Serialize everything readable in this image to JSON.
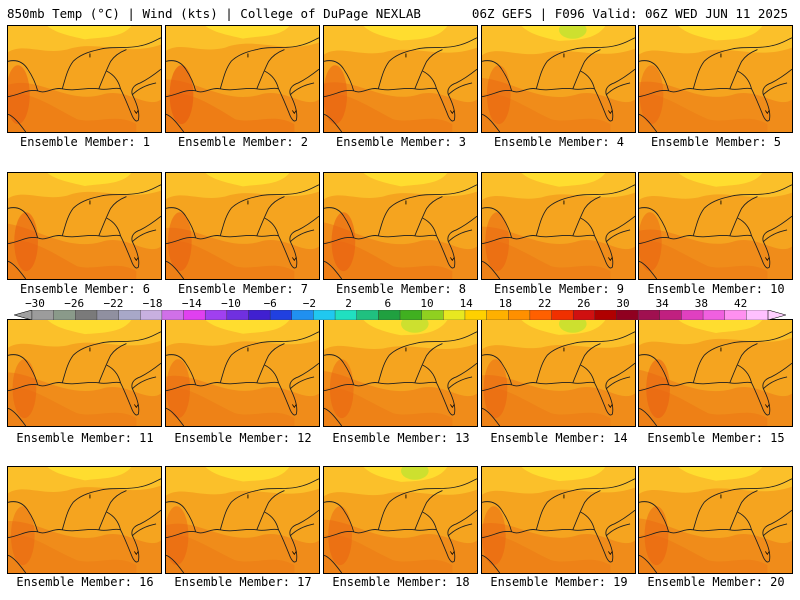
{
  "header": {
    "left": "850mb Temp (°C) | Wind (kts) | College of DuPage NEXLAB",
    "right": "06Z GEFS | F096 Valid: 06Z WED JUN 11 2025"
  },
  "members": [
    {
      "label": "Ensemble Member: 1",
      "warmth": 0.55,
      "yellow_top": 0.45
    },
    {
      "label": "Ensemble Member: 2",
      "warmth": 0.7,
      "yellow_top": 0.35
    },
    {
      "label": "Ensemble Member: 3",
      "warmth": 0.55,
      "yellow_top": 0.6
    },
    {
      "label": "Ensemble Member: 4",
      "warmth": 0.45,
      "yellow_top": 0.65
    },
    {
      "label": "Ensemble Member: 5",
      "warmth": 0.4,
      "yellow_top": 0.6
    },
    {
      "label": "Ensemble Member: 6",
      "warmth": 0.6,
      "yellow_top": 0.4
    },
    {
      "label": "Ensemble Member: 7",
      "warmth": 0.55,
      "yellow_top": 0.45
    },
    {
      "label": "Ensemble Member: 8",
      "warmth": 0.6,
      "yellow_top": 0.45
    },
    {
      "label": "Ensemble Member: 9",
      "warmth": 0.5,
      "yellow_top": 0.5
    },
    {
      "label": "Ensemble Member: 10",
      "warmth": 0.45,
      "yellow_top": 0.5
    },
    {
      "label": "Ensemble Member: 11",
      "warmth": 0.45,
      "yellow_top": 0.55
    },
    {
      "label": "Ensemble Member: 12",
      "warmth": 0.45,
      "yellow_top": 0.5
    },
    {
      "label": "Ensemble Member: 13",
      "warmth": 0.45,
      "yellow_top": 0.7
    },
    {
      "label": "Ensemble Member: 14",
      "warmth": 0.45,
      "yellow_top": 0.65
    },
    {
      "label": "Ensemble Member: 15",
      "warmth": 0.55,
      "yellow_top": 0.4
    },
    {
      "label": "Ensemble Member: 16",
      "warmth": 0.4,
      "yellow_top": 0.45
    },
    {
      "label": "Ensemble Member: 17",
      "warmth": 0.45,
      "yellow_top": 0.6
    },
    {
      "label": "Ensemble Member: 18",
      "warmth": 0.45,
      "yellow_top": 0.65
    },
    {
      "label": "Ensemble Member: 19",
      "warmth": 0.45,
      "yellow_top": 0.55
    },
    {
      "label": "Ensemble Member: 20",
      "warmth": 0.5,
      "yellow_top": 0.5
    }
  ],
  "colorbar": {
    "tick_labels": [
      "−30",
      "−26",
      "−22",
      "−18",
      "−14",
      "−10",
      "−6",
      "−2",
      "2",
      "6",
      "10",
      "14",
      "18",
      "22",
      "26",
      "30",
      "34",
      "38",
      "42"
    ],
    "colors": [
      "#9c9c9c",
      "#8a9a8a",
      "#7a7a7a",
      "#9090a0",
      "#a8a8c8",
      "#c8b0e0",
      "#d070e8",
      "#e040f0",
      "#a040f0",
      "#7030e0",
      "#4020d0",
      "#2040e0",
      "#2090f0",
      "#20c8f0",
      "#20e0c0",
      "#20c080",
      "#20a040",
      "#40b020",
      "#90d020",
      "#e8e820",
      "#ffd000",
      "#ffb000",
      "#ff9000",
      "#ff6000",
      "#f03000",
      "#d01010",
      "#b00000",
      "#900020",
      "#a01050",
      "#c02080",
      "#e040c0",
      "#f060e0",
      "#ff90f0",
      "#ffc0ff"
    ]
  }
}
